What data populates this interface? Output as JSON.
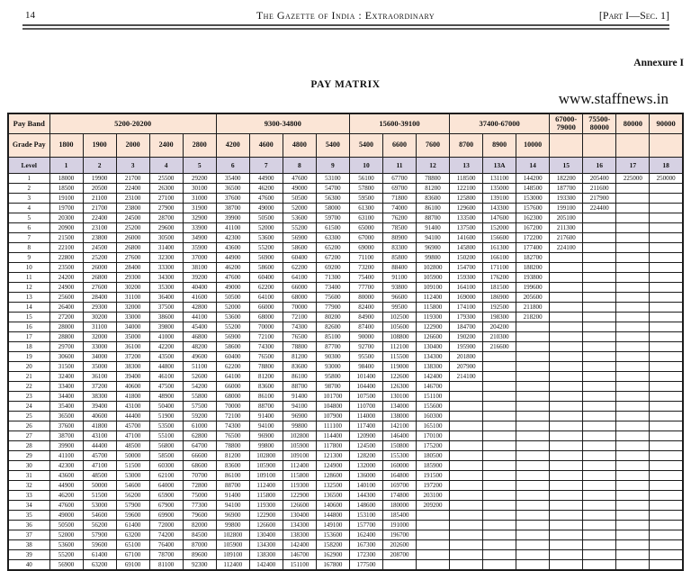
{
  "page": {
    "page_number": "14",
    "header_title": "The Gazette of India : Extraordinary",
    "header_right": "[Part I—Sec. 1]",
    "annexure": "Annexure I",
    "title": "PAY MATRIX",
    "watermark": "www.staffnews.in"
  },
  "colors": {
    "header_bg": "#fbe5d6",
    "level_bg": "#d6d1e3",
    "border": "#1c1c1c"
  },
  "table": {
    "pay_band_label": "Pay Band",
    "grade_pay_label": "Grade Pay",
    "level_label": "Level",
    "pay_bands": [
      {
        "label": "5200-20200",
        "span": 5
      },
      {
        "label": "9300-34800",
        "span": 4
      },
      {
        "label": "15600-39100",
        "span": 3
      },
      {
        "label": "37400-67000",
        "span": 3
      },
      {
        "label": "67000-\n79000",
        "span": 1
      },
      {
        "label": "75500-\n80000",
        "span": 1
      },
      {
        "label": "80000",
        "span": 1
      },
      {
        "label": "90000",
        "span": 1
      }
    ],
    "grade_pays": [
      "1800",
      "1900",
      "2000",
      "2400",
      "2800",
      "4200",
      "4600",
      "4800",
      "5400",
      "5400",
      "6600",
      "7600",
      "8700",
      "8900",
      "10000",
      "",
      "",
      "",
      ""
    ],
    "levels": [
      "1",
      "2",
      "3",
      "4",
      "5",
      "6",
      "7",
      "8",
      "9",
      "10",
      "11",
      "12",
      "13",
      "13A",
      "14",
      "15",
      "16",
      "17",
      "18"
    ],
    "rows": [
      [
        "1",
        "18000",
        "19900",
        "21700",
        "25500",
        "29200",
        "35400",
        "44900",
        "47600",
        "53100",
        "56100",
        "67700",
        "78800",
        "118500",
        "131100",
        "144200",
        "182200",
        "205400",
        "225000",
        "250000"
      ],
      [
        "2",
        "18500",
        "20500",
        "22400",
        "26300",
        "30100",
        "36500",
        "46200",
        "49000",
        "54700",
        "57800",
        "69700",
        "81200",
        "122100",
        "135000",
        "148500",
        "187700",
        "211600",
        "",
        ""
      ],
      [
        "3",
        "19100",
        "21100",
        "23100",
        "27100",
        "31000",
        "37600",
        "47600",
        "50500",
        "56300",
        "59500",
        "71800",
        "83600",
        "125800",
        "139100",
        "153000",
        "193300",
        "217900",
        "",
        ""
      ],
      [
        "4",
        "19700",
        "21700",
        "23800",
        "27900",
        "31900",
        "38700",
        "49000",
        "52000",
        "58000",
        "61300",
        "74000",
        "86100",
        "129600",
        "143300",
        "157600",
        "199100",
        "224400",
        "",
        ""
      ],
      [
        "5",
        "20300",
        "22400",
        "24500",
        "28700",
        "32900",
        "39900",
        "50500",
        "53600",
        "59700",
        "63100",
        "76200",
        "88700",
        "133500",
        "147600",
        "162300",
        "205100",
        "",
        "",
        ""
      ],
      [
        "6",
        "20900",
        "23100",
        "25200",
        "29600",
        "33900",
        "41100",
        "52000",
        "55200",
        "61500",
        "65000",
        "78500",
        "91400",
        "137500",
        "152000",
        "167200",
        "211300",
        "",
        "",
        ""
      ],
      [
        "7",
        "21500",
        "23800",
        "26000",
        "30500",
        "34900",
        "42300",
        "53600",
        "56900",
        "63300",
        "67000",
        "80900",
        "94100",
        "141600",
        "156600",
        "172200",
        "217600",
        "",
        "",
        ""
      ],
      [
        "8",
        "22100",
        "24500",
        "26800",
        "31400",
        "35900",
        "43600",
        "55200",
        "58600",
        "65200",
        "69000",
        "83300",
        "96900",
        "145800",
        "161300",
        "177400",
        "224100",
        "",
        "",
        ""
      ],
      [
        "9",
        "22800",
        "25200",
        "27600",
        "32300",
        "37000",
        "44900",
        "56900",
        "60400",
        "67200",
        "71100",
        "85800",
        "99800",
        "150200",
        "166100",
        "182700",
        "",
        "",
        "",
        ""
      ],
      [
        "10",
        "23500",
        "26000",
        "28400",
        "33300",
        "38100",
        "46200",
        "58600",
        "62200",
        "69200",
        "73200",
        "88400",
        "102800",
        "154700",
        "171100",
        "188200",
        "",
        "",
        "",
        ""
      ],
      [
        "11",
        "24200",
        "26800",
        "29300",
        "34300",
        "39200",
        "47600",
        "60400",
        "64100",
        "71300",
        "75400",
        "91100",
        "105900",
        "159300",
        "176200",
        "193800",
        "",
        "",
        "",
        ""
      ],
      [
        "12",
        "24900",
        "27600",
        "30200",
        "35300",
        "40400",
        "49000",
        "62200",
        "66000",
        "73400",
        "77700",
        "93800",
        "109100",
        "164100",
        "181500",
        "199600",
        "",
        "",
        "",
        ""
      ],
      [
        "13",
        "25600",
        "28400",
        "31100",
        "36400",
        "41600",
        "50500",
        "64100",
        "68000",
        "75600",
        "80000",
        "96600",
        "112400",
        "169000",
        "186900",
        "205600",
        "",
        "",
        "",
        ""
      ],
      [
        "14",
        "26400",
        "29300",
        "32000",
        "37500",
        "42800",
        "52000",
        "66000",
        "70000",
        "77900",
        "82400",
        "99500",
        "115800",
        "174100",
        "192500",
        "211800",
        "",
        "",
        "",
        ""
      ],
      [
        "15",
        "27200",
        "30200",
        "33000",
        "38600",
        "44100",
        "53600",
        "68000",
        "72100",
        "80200",
        "84900",
        "102500",
        "119300",
        "179300",
        "198300",
        "218200",
        "",
        "",
        "",
        ""
      ],
      [
        "16",
        "28000",
        "31100",
        "34000",
        "39800",
        "45400",
        "55200",
        "70000",
        "74300",
        "82600",
        "87400",
        "105600",
        "122900",
        "184700",
        "204200",
        "",
        "",
        "",
        "",
        ""
      ],
      [
        "17",
        "28800",
        "32000",
        "35000",
        "41000",
        "46800",
        "56900",
        "72100",
        "76500",
        "85100",
        "90000",
        "108800",
        "126600",
        "190200",
        "210300",
        "",
        "",
        "",
        "",
        ""
      ],
      [
        "18",
        "29700",
        "33000",
        "36100",
        "42200",
        "48200",
        "58600",
        "74300",
        "78800",
        "87700",
        "92700",
        "112100",
        "130400",
        "195900",
        "216600",
        "",
        "",
        "",
        "",
        ""
      ],
      [
        "19",
        "30600",
        "34000",
        "37200",
        "43500",
        "49600",
        "60400",
        "76500",
        "81200",
        "90300",
        "95500",
        "115500",
        "134300",
        "201800",
        "",
        "",
        "",
        "",
        "",
        ""
      ],
      [
        "20",
        "31500",
        "35000",
        "38300",
        "44800",
        "51100",
        "62200",
        "78800",
        "83600",
        "93000",
        "98400",
        "119000",
        "138300",
        "207900",
        "",
        "",
        "",
        "",
        "",
        ""
      ],
      [
        "21",
        "32400",
        "36100",
        "39400",
        "46100",
        "52600",
        "64100",
        "81200",
        "86100",
        "95800",
        "101400",
        "122600",
        "142400",
        "214100",
        "",
        "",
        "",
        "",
        "",
        ""
      ],
      [
        "22",
        "33400",
        "37200",
        "40600",
        "47500",
        "54200",
        "66000",
        "83600",
        "88700",
        "98700",
        "104400",
        "126300",
        "146700",
        "",
        "",
        "",
        "",
        "",
        "",
        ""
      ],
      [
        "23",
        "34400",
        "38300",
        "41800",
        "48900",
        "55800",
        "68000",
        "86100",
        "91400",
        "101700",
        "107500",
        "130100",
        "151100",
        "",
        "",
        "",
        "",
        "",
        "",
        ""
      ],
      [
        "24",
        "35400",
        "39400",
        "43100",
        "50400",
        "57500",
        "70000",
        "88700",
        "94100",
        "104800",
        "110700",
        "134000",
        "155600",
        "",
        "",
        "",
        "",
        "",
        "",
        ""
      ],
      [
        "25",
        "36500",
        "40600",
        "44400",
        "51900",
        "59200",
        "72100",
        "91400",
        "96900",
        "107900",
        "114000",
        "138000",
        "160300",
        "",
        "",
        "",
        "",
        "",
        "",
        ""
      ],
      [
        "26",
        "37600",
        "41800",
        "45700",
        "53500",
        "61000",
        "74300",
        "94100",
        "99800",
        "111100",
        "117400",
        "142100",
        "165100",
        "",
        "",
        "",
        "",
        "",
        "",
        ""
      ],
      [
        "27",
        "38700",
        "43100",
        "47100",
        "55100",
        "62800",
        "76500",
        "96900",
        "102800",
        "114400",
        "120900",
        "146400",
        "170100",
        "",
        "",
        "",
        "",
        "",
        "",
        ""
      ],
      [
        "28",
        "39900",
        "44400",
        "48500",
        "56800",
        "64700",
        "78800",
        "99800",
        "105900",
        "117800",
        "124500",
        "150800",
        "175200",
        "",
        "",
        "",
        "",
        "",
        "",
        ""
      ],
      [
        "29",
        "41100",
        "45700",
        "50000",
        "58500",
        "66600",
        "81200",
        "102800",
        "109100",
        "121300",
        "128200",
        "155300",
        "180500",
        "",
        "",
        "",
        "",
        "",
        "",
        ""
      ],
      [
        "30",
        "42300",
        "47100",
        "51500",
        "60300",
        "68600",
        "83600",
        "105900",
        "112400",
        "124900",
        "132000",
        "160000",
        "185900",
        "",
        "",
        "",
        "",
        "",
        "",
        ""
      ],
      [
        "31",
        "43600",
        "48500",
        "53000",
        "62100",
        "70700",
        "86100",
        "109100",
        "115800",
        "128600",
        "136000",
        "164800",
        "191500",
        "",
        "",
        "",
        "",
        "",
        "",
        ""
      ],
      [
        "32",
        "44900",
        "50000",
        "54600",
        "64000",
        "72800",
        "88700",
        "112400",
        "119300",
        "132500",
        "140100",
        "169700",
        "197200",
        "",
        "",
        "",
        "",
        "",
        "",
        ""
      ],
      [
        "33",
        "46200",
        "51500",
        "56200",
        "65900",
        "75000",
        "91400",
        "115800",
        "122900",
        "136500",
        "144300",
        "174800",
        "203100",
        "",
        "",
        "",
        "",
        "",
        "",
        ""
      ],
      [
        "34",
        "47600",
        "53000",
        "57900",
        "67900",
        "77300",
        "94100",
        "119300",
        "126600",
        "140600",
        "148600",
        "180000",
        "209200",
        "",
        "",
        "",
        "",
        "",
        "",
        ""
      ],
      [
        "35",
        "49000",
        "54600",
        "59600",
        "69900",
        "79600",
        "96900",
        "122900",
        "130400",
        "144800",
        "153100",
        "185400",
        "",
        "",
        "",
        "",
        "",
        "",
        "",
        ""
      ],
      [
        "36",
        "50500",
        "56200",
        "61400",
        "72000",
        "82000",
        "99800",
        "126600",
        "134300",
        "149100",
        "157700",
        "191000",
        "",
        "",
        "",
        "",
        "",
        "",
        "",
        ""
      ],
      [
        "37",
        "52000",
        "57900",
        "63200",
        "74200",
        "84500",
        "102800",
        "130400",
        "138300",
        "153600",
        "162400",
        "196700",
        "",
        "",
        "",
        "",
        "",
        "",
        "",
        ""
      ],
      [
        "38",
        "53600",
        "59600",
        "65100",
        "76400",
        "87000",
        "105900",
        "134300",
        "142400",
        "158200",
        "167300",
        "202600",
        "",
        "",
        "",
        "",
        "",
        "",
        "",
        ""
      ],
      [
        "39",
        "55200",
        "61400",
        "67100",
        "78700",
        "89600",
        "109100",
        "138300",
        "146700",
        "162900",
        "172300",
        "208700",
        "",
        "",
        "",
        "",
        "",
        "",
        "",
        ""
      ],
      [
        "40",
        "56900",
        "63200",
        "69100",
        "81100",
        "92300",
        "112400",
        "142400",
        "151100",
        "167800",
        "177500",
        "",
        "",
        "",
        "",
        "",
        "",
        "",
        "",
        ""
      ]
    ]
  }
}
